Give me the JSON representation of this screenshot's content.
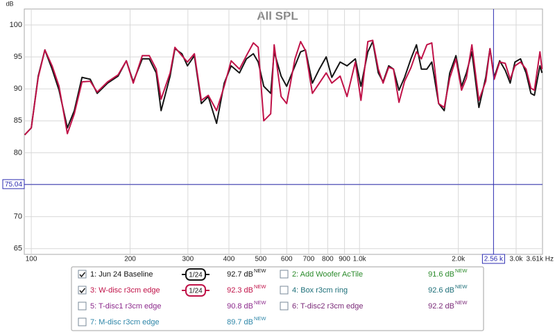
{
  "chart_data": {
    "type": "line",
    "title": "All SPL",
    "y_label": "dB",
    "xscale": "log",
    "grid": true,
    "xlim": [
      95.2,
      3610
    ],
    "ylim": [
      64.1,
      102.5
    ],
    "xticks": [
      100,
      200,
      300,
      400,
      500,
      600,
      700,
      800,
      900,
      {
        "value": 1000,
        "label": "1.0k"
      },
      {
        "value": 2000,
        "label": "2.0k"
      },
      {
        "value": 3000,
        "label": "3.0k"
      },
      {
        "value": 3610,
        "label": "3.61k Hz"
      }
    ],
    "yticks": [
      65,
      70,
      75,
      80,
      85,
      90,
      95,
      100
    ],
    "cursor": {
      "x": {
        "value": 2560,
        "label": "2.56 k"
      },
      "y": 75.04,
      "color": "#2b2bb0"
    },
    "x": [
      95.5,
      100,
      105,
      110,
      115.7,
      121.5,
      128.8,
      135.2,
      142.7,
      151.2,
      158.8,
      170.8,
      183.8,
      194.8,
      204.5,
      217.9,
      228.8,
      240.2,
      248.6,
      264.8,
      273.9,
      287.6,
      299,
      314,
      329.6,
      346.1,
      366.9,
      387,
      406.3,
      430.8,
      452.3,
      474.9,
      491.4,
      510.9,
      536.3,
      549.5,
      576.9,
      599.8,
      636,
      661.3,
      684.2,
      718.4,
      754.2,
      791.7,
      823.2,
      872.8,
      916.2,
      971.2,
      1010,
      1060,
      1097,
      1141,
      1180,
      1227,
      1269,
      1319,
      1372,
      1434,
      1491,
      1543,
      1604,
      1660,
      1742,
      1811,
      1883,
      1967,
      2046,
      2117,
      2200,
      2310,
      2425,
      2497,
      2571,
      2673,
      2780,
      2877,
      2976,
      3094,
      3217,
      3329,
      3411,
      3546,
      3597
    ],
    "series": [
      {
        "name": "1: Jun 24 Baseline",
        "color": "#141414",
        "checked": true,
        "smoothing": "1/24",
        "level": "92.7 dB",
        "values": [
          82.8,
          83.9,
          92.0,
          96.1,
          93.1,
          89.8,
          83.9,
          86.6,
          91.8,
          91.5,
          89.3,
          90.9,
          92.0,
          94.4,
          91.1,
          94.7,
          94.7,
          92.5,
          86.6,
          92.0,
          96.3,
          95.5,
          93.6,
          95.2,
          87.7,
          88.8,
          84.6,
          90.9,
          93.6,
          92.5,
          94.7,
          95.5,
          94.2,
          90.4,
          89.3,
          95.8,
          92.0,
          90.4,
          93.6,
          95.8,
          96.1,
          90.9,
          93.1,
          95.0,
          91.8,
          94.2,
          93.6,
          94.7,
          90.4,
          95.8,
          97.4,
          92.5,
          91.1,
          93.6,
          93.1,
          89.8,
          91.8,
          94.7,
          96.9,
          93.1,
          93.1,
          94.2,
          87.7,
          86.6,
          92.5,
          95.2,
          90.4,
          92.5,
          95.8,
          87.1,
          91.8,
          96.3,
          91.8,
          94.4,
          92.9,
          90.9,
          94.2,
          94.7,
          92.5,
          89.3,
          89.0,
          93.6,
          92.5
        ]
      },
      {
        "name": "3: W-disc r3cm edge",
        "color": "#c01248",
        "checked": true,
        "smoothing": "1/24",
        "level": "92.3 dB",
        "values": [
          82.8,
          83.9,
          91.8,
          96.1,
          93.6,
          90.4,
          83.0,
          86.1,
          91.1,
          91.2,
          89.5,
          91.1,
          92.2,
          94.4,
          90.9,
          95.2,
          95.2,
          93.1,
          88.4,
          92.5,
          96.5,
          95.2,
          94.2,
          95.5,
          88.2,
          89.0,
          86.6,
          90.4,
          94.4,
          93.1,
          95.2,
          97.2,
          96.5,
          85.0,
          86.1,
          96.9,
          88.8,
          87.7,
          94.7,
          97.4,
          96.0,
          89.3,
          90.9,
          92.5,
          90.9,
          92.0,
          88.8,
          94.2,
          88.2,
          97.4,
          97.6,
          93.1,
          90.9,
          93.4,
          93.1,
          87.9,
          91.2,
          93.3,
          95.8,
          94.7,
          96.9,
          97.2,
          87.7,
          87.1,
          91.7,
          94.7,
          89.8,
          91.7,
          96.9,
          88.2,
          91.2,
          96.3,
          91.5,
          94.2,
          94.0,
          91.5,
          93.6,
          94.2,
          93.1,
          90.1,
          89.8,
          95.8,
          93.1
        ]
      }
    ],
    "other_traces": [
      {
        "name": "2: Add Woofer AcTile",
        "color": "#2a8a2a",
        "checked": false,
        "level": "91.6 dB"
      },
      {
        "name": "4: Box r3cm ring",
        "color": "#1c6e78",
        "checked": false,
        "level": "92.6 dB"
      },
      {
        "name": "5: T-disc1 r3cm edge",
        "color": "#8c2a8c",
        "checked": false,
        "level": "90.8 dB"
      },
      {
        "name": "6: T-disc2 r3cm edge",
        "color": "#7a2a78",
        "checked": false,
        "level": "92.2 dB"
      },
      {
        "name": "7: M-disc r3cm edge",
        "color": "#2e86a8",
        "checked": false,
        "level": "89.7 dB"
      }
    ],
    "level_tag": "NEW"
  }
}
